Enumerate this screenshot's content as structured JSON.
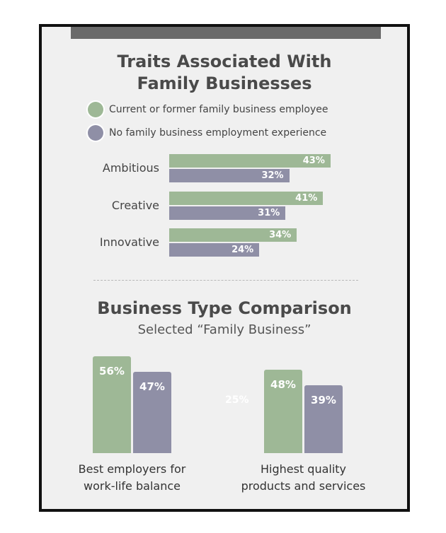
{
  "colors": {
    "green": "#9eb896",
    "purple": "#8f8fa6",
    "frame_border": "#111111",
    "background": "#f0f0f0",
    "top_bar": "#6a6a6a"
  },
  "chart_data": [
    {
      "type": "bar",
      "orientation": "horizontal",
      "title": "Traits Associated With Family Businesses",
      "legend": {
        "placement": "top"
      },
      "categories": [
        "Ambitious",
        "Creative",
        "Innovative"
      ],
      "series": [
        {
          "name": "Current or former family business employee",
          "values": [
            43,
            41,
            34
          ],
          "labels": [
            "43%",
            "41%",
            "34%"
          ]
        },
        {
          "name": "No family business employment experience",
          "values": [
            32,
            31,
            24
          ],
          "labels": [
            "32%",
            "31%",
            "24%"
          ]
        }
      ],
      "xlim": [
        0,
        100
      ],
      "grid": false
    },
    {
      "type": "bar",
      "orientation": "vertical",
      "title": "Business Type Comparison",
      "subtitle": "Selected “Family Business”",
      "categories": [
        "Best employers for work-life balance",
        "Highest quality products and services"
      ],
      "category_lines": [
        [
          "Best employers for",
          "work-life balance"
        ],
        [
          "Highest quality",
          "products and services"
        ]
      ],
      "series": [
        {
          "values": [
            56,
            48
          ],
          "labels": [
            "56%",
            "48%"
          ]
        },
        {
          "values": [
            47,
            39
          ],
          "labels": [
            "47%",
            "39%"
          ]
        }
      ],
      "annotations": [
        "25%"
      ],
      "ylim": [
        0,
        100
      ],
      "grid": false
    }
  ]
}
